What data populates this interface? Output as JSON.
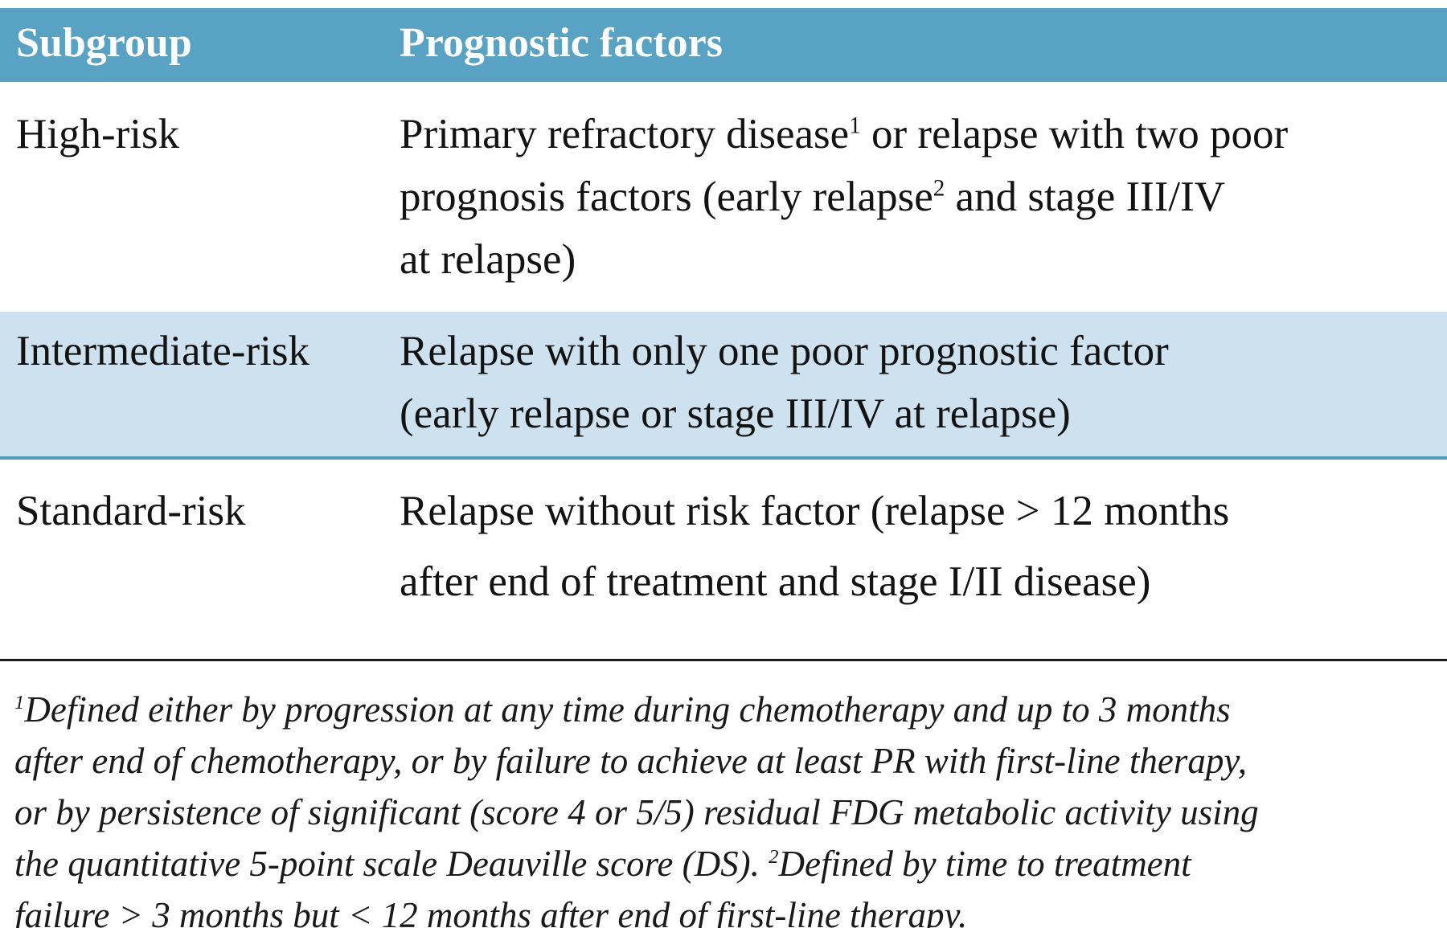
{
  "colors": {
    "header_bg": "#58a3c3",
    "header_text": "#ffffff",
    "highlight_row_bg": "#cde2ee",
    "highlight_row_border": "#4f9cbb",
    "body_text": "#131313"
  },
  "table": {
    "columns": [
      {
        "label": "Subgroup"
      },
      {
        "label": "Prognostic factors"
      }
    ],
    "rows": [
      {
        "subgroup": "High-risk",
        "highlighted": false,
        "factors": {
          "seg0": "Primary refractory disease",
          "sup1": "1",
          "seg1": " or relapse with two poor\nprognosis factors (early relapse",
          "sup2": "2",
          "seg2": " and stage III/IV\nat relapse)"
        }
      },
      {
        "subgroup": "Intermediate-risk",
        "highlighted": true,
        "factors": {
          "seg0": "Relapse with only one poor prognostic factor\n(early relapse or stage III/IV at relapse)"
        }
      },
      {
        "subgroup": "Standard-risk",
        "highlighted": false,
        "factors": {
          "seg0": "Relapse without risk factor (relapse > 12 months\nafter end of treatment and stage I/II disease)"
        }
      }
    ]
  },
  "footnotes": {
    "sup1": "1",
    "text1": "Defined either by progression at any time during chemotherapy and up to 3 months\nafter end of chemotherapy, or by failure to achieve at least PR with first-line therapy,\nor by persistence of significant (score 4 or 5/5) residual FDG metabolic activity using\nthe quantitative 5-point scale Deauville score (DS). ",
    "sup2": "2",
    "text2": "Defined by time to treatment\nfailure > 3 months but < 12 months after end of first-line therapy."
  }
}
